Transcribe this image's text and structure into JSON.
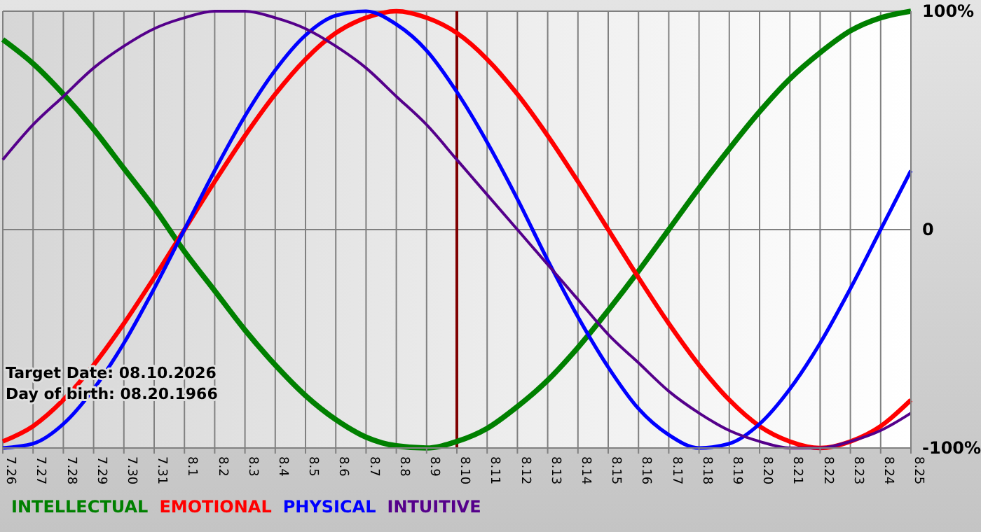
{
  "chart_data": {
    "type": "line",
    "categories": [
      "7.26",
      "7.27",
      "7.28",
      "7.29",
      "7.30",
      "7.31",
      "8.1",
      "8.2",
      "8.3",
      "8.4",
      "8.5",
      "8.6",
      "8.7",
      "8.8",
      "8.9",
      "8.10",
      "8.11",
      "8.12",
      "8.13",
      "8.14",
      "8.15",
      "8.16",
      "8.17",
      "8.18",
      "8.19",
      "8.20",
      "8.21",
      "8.22",
      "8.23",
      "8.24",
      "8.25"
    ],
    "series": [
      {
        "name": "INTELLECTUAL",
        "color": "#008000",
        "values": [
          87,
          76,
          62,
          46,
          28,
          10,
          -10,
          -28,
          -46,
          -62,
          -76,
          -87,
          -95,
          -99,
          -100,
          -97,
          -91,
          -81,
          -69,
          -54,
          -37,
          -19,
          0,
          19,
          37,
          54,
          69,
          81,
          91,
          97,
          100
        ]
      },
      {
        "name": "EMOTIONAL",
        "color": "#ff0000",
        "values": [
          -97,
          -90,
          -78,
          -62,
          -43,
          -22,
          0,
          22,
          43,
          62,
          78,
          90,
          97,
          100,
          97,
          90,
          78,
          62,
          43,
          22,
          0,
          -22,
          -43,
          -62,
          -78,
          -90,
          -97,
          -100,
          -97,
          -90,
          -78
        ]
      },
      {
        "name": "PHYSICAL",
        "color": "#0000ff",
        "values": [
          -100,
          -98,
          -89,
          -73,
          -52,
          -27,
          0,
          27,
          52,
          73,
          89,
          98,
          100,
          94,
          82,
          63,
          40,
          14,
          -14,
          -40,
          -63,
          -82,
          -94,
          -100,
          -98,
          -89,
          -73,
          -52,
          -27,
          0,
          27
        ]
      },
      {
        "name": "INTUITIVE",
        "color": "#55008b",
        "values": [
          32,
          48,
          61,
          74,
          84,
          92,
          97,
          100,
          100,
          97,
          92,
          84,
          74,
          61,
          48,
          32,
          16,
          0,
          -16,
          -32,
          -48,
          -61,
          -74,
          -84,
          -92,
          -97,
          -100,
          -100,
          -97,
          -92,
          -84
        ]
      }
    ],
    "ylim": [
      -100,
      100
    ],
    "yticks": [
      {
        "value": 100,
        "label": "100%"
      },
      0,
      {
        "value": -100,
        "label": "-100%"
      }
    ],
    "grid": true,
    "legend": "bottom",
    "ref_lines": [
      {
        "axis": "x",
        "value": "8.10",
        "color": "#800000"
      }
    ],
    "annotations": [
      "Target Date: 08.10.2026",
      "Day of birth: 08.20.1966"
    ]
  }
}
